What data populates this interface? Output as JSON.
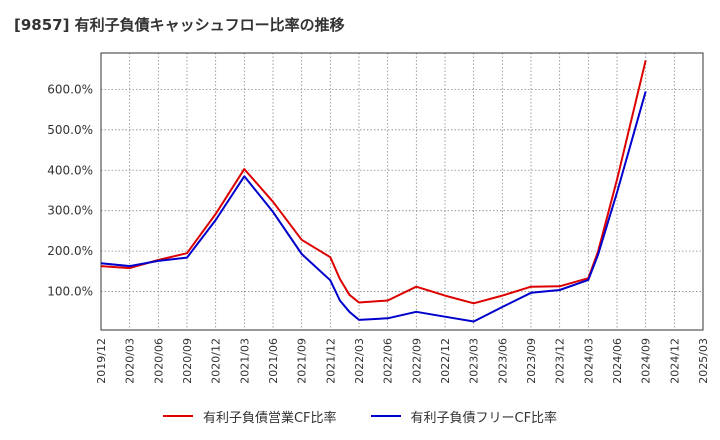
{
  "title": "[9857]  有利子負債キャッシュフロー比率の推移",
  "chart_data": {
    "type": "line",
    "x": [
      "2019/12",
      "2020/03",
      "2020/06",
      "2020/09",
      "2020/12",
      "2021/03",
      "2021/06",
      "2021/09",
      "2021/12",
      "2022/03",
      "2022/06",
      "2022/09",
      "2022/12",
      "2023/03",
      "2023/06",
      "2023/09",
      "2023/12",
      "2024/03",
      "2024/06",
      "2024/09",
      "2024/12",
      "2025/03"
    ],
    "x_ticks": [
      "2019/12",
      "2020/03",
      "2020/06",
      "2020/09",
      "2020/12",
      "2021/03",
      "2021/06",
      "2021/09",
      "2021/12",
      "2022/03",
      "2022/06",
      "2022/09",
      "2022/12",
      "2023/03",
      "2023/06",
      "2023/09",
      "2023/12",
      "2024/03",
      "2024/06",
      "2024/09",
      "2024/12",
      "2025/03"
    ],
    "y_ticks": [
      100,
      200,
      300,
      400,
      500,
      600
    ],
    "y_tick_labels": [
      "100.0%",
      "200.0%",
      "300.0%",
      "400.0%",
      "500.0%",
      "600.0%"
    ],
    "ylim": [
      5,
      690
    ],
    "grid": true,
    "legend_position": "bottom",
    "series": [
      {
        "name": "有利子負債営業CF比率",
        "color": "#dd0000",
        "points": [
          [
            "2019/12",
            163
          ],
          [
            "2020/03",
            158
          ],
          [
            "2020/06",
            178
          ],
          [
            "2020/09",
            195
          ],
          [
            "2020/12",
            292
          ],
          [
            "2021/03",
            403
          ],
          [
            "2021/06",
            322
          ],
          [
            "2021/09",
            228
          ],
          [
            "2021/12",
            185
          ],
          [
            "2022/01",
            131
          ],
          [
            "2022/02",
            92
          ],
          [
            "2022/03",
            73
          ],
          [
            "2022/06",
            78
          ],
          [
            "2022/09",
            112
          ],
          [
            "2022/12",
            90
          ],
          [
            "2023/03",
            71
          ],
          [
            "2023/06",
            90
          ],
          [
            "2023/09",
            112
          ],
          [
            "2023/12",
            113
          ],
          [
            "2024/03",
            133
          ],
          [
            "2024/04",
            198
          ],
          [
            "2024/06",
            377
          ],
          [
            "2024/09",
            672
          ]
        ]
      },
      {
        "name": "有利子負債フリーCF比率",
        "color": "#0000cc",
        "points": [
          [
            "2019/12",
            170
          ],
          [
            "2020/03",
            163
          ],
          [
            "2020/06",
            176
          ],
          [
            "2020/09",
            184
          ],
          [
            "2020/12",
            277
          ],
          [
            "2021/03",
            385
          ],
          [
            "2021/06",
            297
          ],
          [
            "2021/09",
            193
          ],
          [
            "2021/12",
            128
          ],
          [
            "2022/01",
            78
          ],
          [
            "2022/02",
            50
          ],
          [
            "2022/03",
            30
          ],
          [
            "2022/06",
            34
          ],
          [
            "2022/09",
            50
          ],
          [
            "2022/12",
            38
          ],
          [
            "2023/03",
            26
          ],
          [
            "2023/06",
            62
          ],
          [
            "2023/09",
            97
          ],
          [
            "2023/12",
            104
          ],
          [
            "2024/03",
            129
          ],
          [
            "2024/04",
            190
          ],
          [
            "2024/06",
            345
          ],
          [
            "2024/09",
            595
          ]
        ]
      }
    ]
  }
}
